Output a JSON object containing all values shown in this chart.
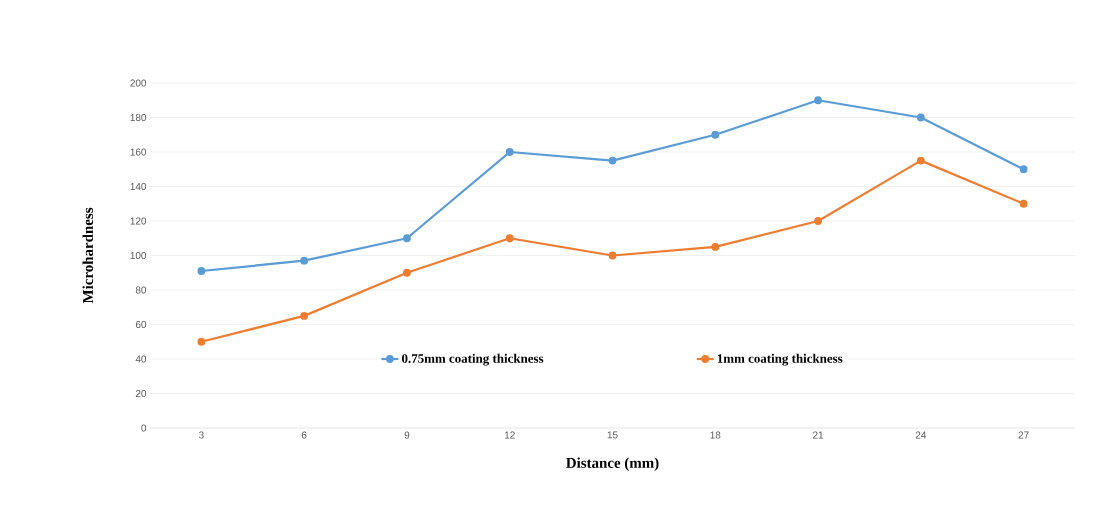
{
  "chart_data": {
    "type": "line",
    "xlabel": "Distance (mm)",
    "ylabel": "Microhardness",
    "categories": [
      "3",
      "6",
      "9",
      "12",
      "15",
      "18",
      "21",
      "24",
      "27"
    ],
    "series": [
      {
        "name": "0.75mm coating thickness",
        "color": "#5b9bd5",
        "values": [
          91,
          97,
          110,
          160,
          155,
          170,
          190,
          180,
          150
        ]
      },
      {
        "name": "1mm coating thickness",
        "color": "#ed7d31",
        "values": [
          50,
          65,
          90,
          110,
          100,
          105,
          120,
          155,
          130
        ]
      }
    ],
    "ylim": [
      0,
      200
    ],
    "yticks": [
      0,
      20,
      40,
      60,
      80,
      100,
      120,
      140,
      160,
      180,
      200
    ],
    "grid": "y",
    "legend": "bottom",
    "marker": "circle",
    "line_style": "solid"
  }
}
